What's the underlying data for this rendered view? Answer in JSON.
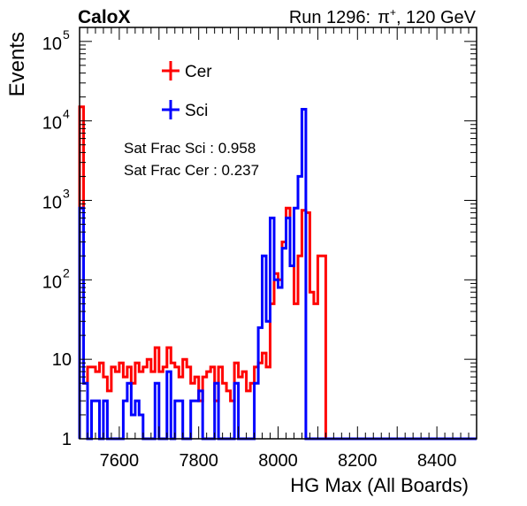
{
  "header": {
    "experiment": "CaloX",
    "run": "Run 1296:",
    "particle": "π",
    "charge": "+",
    "energy": ", 120 GeV"
  },
  "annotations": [
    "Sat Frac Sci : 0.958",
    "Sat Frac Cer : 0.237"
  ],
  "colors": {
    "Cer": "#ff0000",
    "Sci": "#0000ff",
    "axis": "#000000",
    "background": "#ffffff"
  },
  "chart_data": {
    "type": "histogram",
    "xlabel": "HG Max (All Boards)",
    "ylabel": "Events",
    "xlim": [
      7500,
      8500
    ],
    "ylim": [
      1,
      150000
    ],
    "yscale": "log",
    "grid": false,
    "legend_position": "top-left",
    "x_ticks": [
      "7600",
      "7800",
      "8000",
      "8200",
      "8400"
    ],
    "x_tick_values": [
      7600,
      7800,
      8000,
      8200,
      8400
    ],
    "y_ticks": [
      {
        "value": 1,
        "base": "1",
        "exp": ""
      },
      {
        "value": 10,
        "base": "10",
        "exp": ""
      },
      {
        "value": 100,
        "base": "10",
        "exp": "2"
      },
      {
        "value": 1000,
        "base": "10",
        "exp": "3"
      },
      {
        "value": 10000,
        "base": "10",
        "exp": "4"
      },
      {
        "value": 100000,
        "base": "10",
        "exp": "5"
      }
    ],
    "bin_width": 10,
    "series": [
      {
        "name": "Cer",
        "bin_start": 7500,
        "values": [
          15000,
          5,
          8,
          8,
          7,
          9,
          6,
          4,
          8,
          7,
          9,
          6,
          8,
          5,
          9,
          7,
          8,
          10,
          7,
          14,
          7,
          8,
          14,
          9,
          8,
          6,
          10,
          8,
          5,
          6,
          3,
          6,
          7,
          8,
          3,
          8,
          5,
          4,
          3,
          9,
          6,
          7,
          4,
          5,
          8,
          9,
          12,
          8,
          50,
          120,
          100,
          300,
          800,
          150,
          50,
          200,
          750,
          700,
          70,
          50,
          200,
          200,
          1,
          1,
          1,
          1,
          1,
          1,
          1,
          1,
          1,
          1,
          1,
          1,
          1,
          1,
          1,
          1,
          1,
          1,
          1,
          1,
          1,
          1,
          1,
          1,
          1,
          1,
          1,
          1,
          1,
          1,
          1,
          1,
          1,
          1,
          1,
          1,
          1,
          1
        ]
      },
      {
        "name": "Sci",
        "bin_start": 7500,
        "values": [
          800,
          5,
          1,
          3,
          3,
          1,
          3,
          1,
          1,
          1,
          1,
          3,
          5,
          2,
          3,
          2,
          1,
          1,
          1,
          5,
          1,
          1,
          7,
          1,
          3,
          3,
          1,
          1,
          3,
          3,
          4,
          1,
          1,
          1,
          5,
          1,
          1,
          1,
          1,
          5,
          1,
          1,
          1,
          1,
          5,
          25,
          200,
          30,
          600,
          100,
          80,
          250,
          600,
          150,
          800,
          2000,
          14000,
          1,
          1,
          1,
          1,
          1,
          1,
          1,
          1,
          1,
          1,
          1,
          1,
          1,
          1,
          1,
          1,
          1,
          1,
          1,
          1,
          1,
          1,
          1,
          1,
          1,
          1,
          1,
          1,
          1,
          1,
          1,
          1,
          1,
          1,
          1,
          1,
          1,
          1,
          1,
          1,
          1,
          1,
          1
        ]
      }
    ]
  }
}
